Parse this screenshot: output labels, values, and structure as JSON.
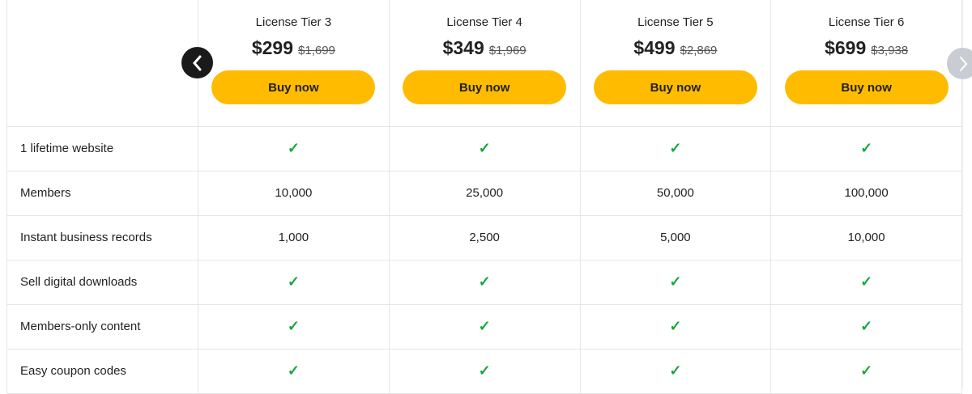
{
  "tiers": [
    {
      "name": "License Tier 3",
      "price": "$299",
      "old_price": "$1,699",
      "button": "Buy now"
    },
    {
      "name": "License Tier 4",
      "price": "$349",
      "old_price": "$1,969",
      "button": "Buy now"
    },
    {
      "name": "License Tier 5",
      "price": "$499",
      "old_price": "$2,869",
      "button": "Buy now"
    },
    {
      "name": "License Tier 6",
      "price": "$699",
      "old_price": "$3,938",
      "button": "Buy now"
    }
  ],
  "rows": [
    {
      "label": "1 lifetime website",
      "values": [
        "✓",
        "✓",
        "✓",
        "✓"
      ]
    },
    {
      "label": "Members",
      "values": [
        "10,000",
        "25,000",
        "50,000",
        "100,000"
      ]
    },
    {
      "label": "Instant business records",
      "values": [
        "1,000",
        "2,500",
        "5,000",
        "10,000"
      ]
    },
    {
      "label": "Sell digital downloads",
      "values": [
        "✓",
        "✓",
        "✓",
        "✓"
      ]
    },
    {
      "label": "Members-only content",
      "values": [
        "✓",
        "✓",
        "✓",
        "✓"
      ]
    },
    {
      "label": "Easy coupon codes",
      "values": [
        "✓",
        "✓",
        "✓",
        "✓"
      ]
    }
  ],
  "colors": {
    "button": "#ffbb00",
    "check": "#14a83a"
  },
  "nav": {
    "prev_icon": "chevron-left-icon",
    "next_icon": "chevron-right-icon"
  }
}
